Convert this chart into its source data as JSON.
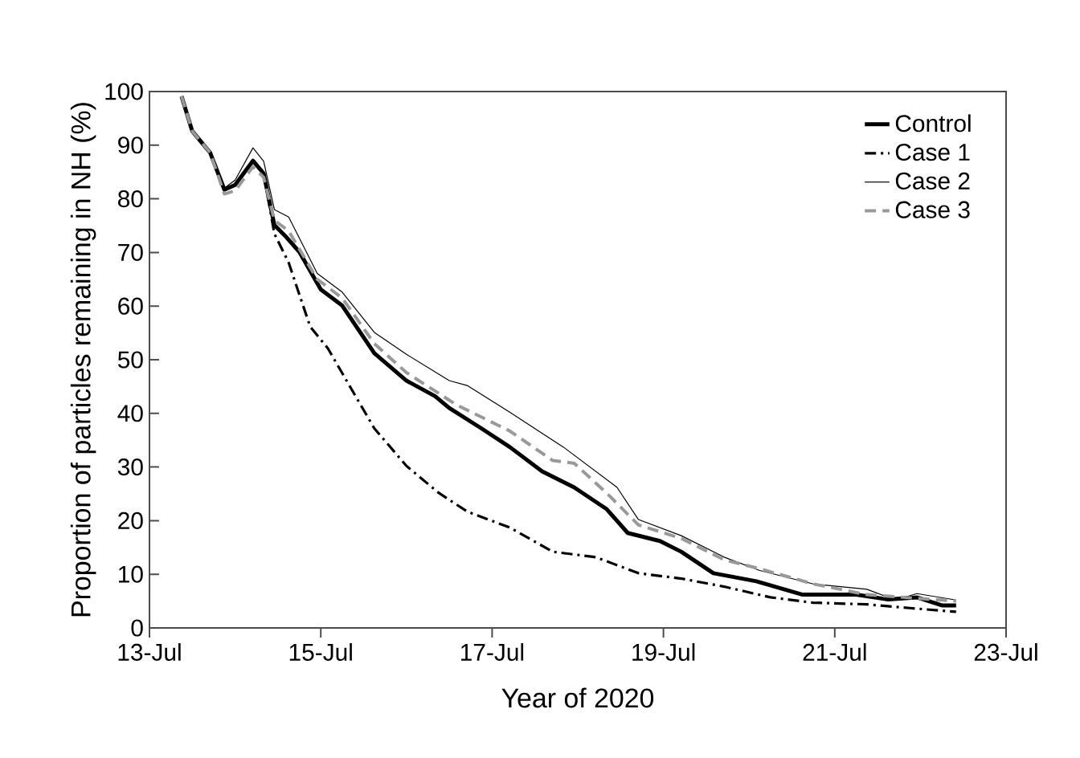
{
  "chart_data": {
    "type": "line",
    "xlabel": "Year of 2020",
    "ylabel": "Proportion of particles remaining in NH (%)",
    "xlim": [
      "2020-07-13",
      "2020-07-23"
    ],
    "xticks": [
      {
        "value": "2020-07-13",
        "label": "13-Jul"
      },
      {
        "value": "2020-07-15",
        "label": "15-Jul"
      },
      {
        "value": "2020-07-17",
        "label": "17-Jul"
      },
      {
        "value": "2020-07-19",
        "label": "19-Jul"
      },
      {
        "value": "2020-07-21",
        "label": "21-Jul"
      },
      {
        "value": "2020-07-23",
        "label": "23-Jul"
      }
    ],
    "ylim": [
      0,
      100
    ],
    "yticks": [
      0,
      10,
      20,
      30,
      40,
      50,
      60,
      70,
      80,
      90,
      100
    ],
    "legend": "top right",
    "marker": "none",
    "series": [
      {
        "name": "Control",
        "color": "#000000",
        "line_style": "solid",
        "x": [
          "2020-07-13T09:00",
          "2020-07-13T12:00",
          "2020-07-13T17:00",
          "2020-07-13T21:00",
          "2020-07-14T00:00",
          "2020-07-14T05:00",
          "2020-07-14T08:00",
          "2020-07-14T11:00",
          "2020-07-14T14:00",
          "2020-07-14T18:00",
          "2020-07-15T00:00",
          "2020-07-15T06:00",
          "2020-07-15T15:00",
          "2020-07-16T00:00",
          "2020-07-16T08:00",
          "2020-07-16T12:00",
          "2020-07-16T21:00",
          "2020-07-17T05:00",
          "2020-07-17T14:00",
          "2020-07-17T23:00",
          "2020-07-18T08:00",
          "2020-07-18T14:00",
          "2020-07-18T23:00",
          "2020-07-19T05:00",
          "2020-07-19T14:00",
          "2020-07-20T02:00",
          "2020-07-20T15:00",
          "2020-07-21T06:00",
          "2020-07-21T15:00",
          "2020-07-21T23:00",
          "2020-07-22T06:00",
          "2020-07-22T10:00"
        ],
        "values": [
          99.1,
          92.6,
          88.6,
          81.7,
          82.6,
          87.1,
          84.7,
          75.1,
          73.1,
          70.1,
          63.1,
          60.1,
          51.2,
          46.1,
          43.2,
          41.0,
          37.2,
          33.7,
          29.2,
          26.2,
          22.2,
          17.7,
          16.2,
          14.2,
          10.2,
          8.7,
          6.2,
          6.2,
          5.3,
          5.7,
          4.2,
          4.2
        ]
      },
      {
        "name": "Case 1",
        "color": "#000000",
        "line_style": "dashdot",
        "x": [
          "2020-07-13T09:00",
          "2020-07-13T12:00",
          "2020-07-13T17:00",
          "2020-07-13T21:00",
          "2020-07-14T00:00",
          "2020-07-14T05:00",
          "2020-07-14T08:00",
          "2020-07-14T11:00",
          "2020-07-14T15:00",
          "2020-07-14T21:00",
          "2020-07-15T02:00",
          "2020-07-15T08:00",
          "2020-07-15T15:00",
          "2020-07-16T00:00",
          "2020-07-16T09:00",
          "2020-07-16T17:00",
          "2020-07-17T05:00",
          "2020-07-17T17:00",
          "2020-07-18T05:00",
          "2020-07-18T17:00",
          "2020-07-19T05:00",
          "2020-07-19T17:00",
          "2020-07-20T06:00",
          "2020-07-20T18:00",
          "2020-07-21T09:00",
          "2020-07-21T21:00",
          "2020-07-22T10:00"
        ],
        "values": [
          99.1,
          92.6,
          88.6,
          81.7,
          82.6,
          87.1,
          84.7,
          73.5,
          68.1,
          56.2,
          52.1,
          45.2,
          37.2,
          30.2,
          25.2,
          21.7,
          18.7,
          14.2,
          13.2,
          10.2,
          9.2,
          7.7,
          5.7,
          4.7,
          4.4,
          3.7,
          3.0
        ]
      },
      {
        "name": "Case 2",
        "color": "#000000",
        "line_style": "solid",
        "x": [
          "2020-07-13T09:00",
          "2020-07-13T12:00",
          "2020-07-13T17:00",
          "2020-07-13T21:00",
          "2020-07-14T00:00",
          "2020-07-14T05:00",
          "2020-07-14T08:00",
          "2020-07-14T11:00",
          "2020-07-14T15:00",
          "2020-07-14T23:00",
          "2020-07-15T06:00",
          "2020-07-15T15:00",
          "2020-07-16T00:00",
          "2020-07-16T12:00",
          "2020-07-16T17:00",
          "2020-07-17T05:00",
          "2020-07-17T20:00",
          "2020-07-18T11:00",
          "2020-07-18T17:00",
          "2020-07-19T05:00",
          "2020-07-19T17:00",
          "2020-07-20T03:00",
          "2020-07-20T18:00",
          "2020-07-21T09:00",
          "2020-07-21T17:00",
          "2020-07-21T23:00",
          "2020-07-22T10:00"
        ],
        "values": [
          99.1,
          92.6,
          88.6,
          82.0,
          83.5,
          89.5,
          87.0,
          78.0,
          76.6,
          66.1,
          62.6,
          55.1,
          51.0,
          46.1,
          45.2,
          40.2,
          33.7,
          26.2,
          20.2,
          17.2,
          13.2,
          10.7,
          8.2,
          7.2,
          5.2,
          6.4,
          5.2
        ]
      },
      {
        "name": "Case 3",
        "color": "#999999",
        "line_style": "dashed",
        "x": [
          "2020-07-13T09:00",
          "2020-07-13T12:00",
          "2020-07-13T17:00",
          "2020-07-13T21:00",
          "2020-07-14T00:00",
          "2020-07-14T05:00",
          "2020-07-14T08:00",
          "2020-07-14T11:00",
          "2020-07-14T15:00",
          "2020-07-14T23:00",
          "2020-07-15T06:00",
          "2020-07-15T15:00",
          "2020-07-16T00:00",
          "2020-07-16T14:00",
          "2020-07-17T05:00",
          "2020-07-17T17:00",
          "2020-07-17T23:00",
          "2020-07-18T08:00",
          "2020-07-18T17:00",
          "2020-07-19T05:00",
          "2020-07-19T17:00",
          "2020-07-20T02:00",
          "2020-07-20T18:00",
          "2020-07-21T09:00",
          "2020-07-22T10:00"
        ],
        "values": [
          99.1,
          92.6,
          88.6,
          80.9,
          81.5,
          86.0,
          84.0,
          76.0,
          74.0,
          65.0,
          61.5,
          53.0,
          47.6,
          41.6,
          36.7,
          31.2,
          30.7,
          25.2,
          19.2,
          16.7,
          12.7,
          11.2,
          8.2,
          6.2,
          5.0
        ]
      }
    ]
  }
}
